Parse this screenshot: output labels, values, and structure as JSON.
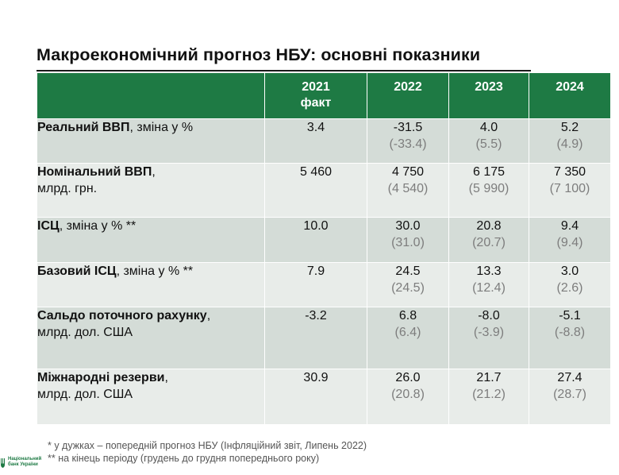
{
  "title": "Макроекономічний прогноз НБУ: основні показники",
  "header": {
    "corner": "",
    "years": [
      {
        "line1": "2021",
        "line2": "факт"
      },
      {
        "line1": "2022",
        "line2": ""
      },
      {
        "line1": "2023",
        "line2": ""
      },
      {
        "line1": "2024",
        "line2": ""
      }
    ]
  },
  "rows": [
    {
      "bold": "Реальний ВВП",
      "rest": ", зміна у %",
      "line2": "",
      "fact": "3.4",
      "values": [
        {
          "cur": "-31.5",
          "prev": "(-33.4)"
        },
        {
          "cur": "4.0",
          "prev": "(5.5)"
        },
        {
          "cur": "5.2",
          "prev": "(4.9)"
        }
      ]
    },
    {
      "bold": "Номінальний ВВП",
      "rest": ",",
      "line2": "млрд. грн.",
      "fact": "5 460",
      "values": [
        {
          "cur": "4 750",
          "prev": "(4 540)"
        },
        {
          "cur": "6 175",
          "prev": "(5 990)"
        },
        {
          "cur": "7 350",
          "prev": "(7 100)"
        }
      ]
    },
    {
      "bold": "ІСЦ",
      "rest": ", зміна у % **",
      "line2": "",
      "fact": "10.0",
      "values": [
        {
          "cur": "30.0",
          "prev": "(31.0)"
        },
        {
          "cur": "20.8",
          "prev": "(20.7)"
        },
        {
          "cur": "9.4",
          "prev": "(9.4)"
        }
      ]
    },
    {
      "bold": "Базовий ІСЦ",
      "rest": ", зміна у % **",
      "line2": "",
      "fact": "7.9",
      "values": [
        {
          "cur": "24.5",
          "prev": "(24.5)"
        },
        {
          "cur": "13.3",
          "prev": "(12.4)"
        },
        {
          "cur": "3.0",
          "prev": "(2.6)"
        }
      ]
    },
    {
      "bold": "Сальдо поточного рахунку",
      "rest": ",",
      "line2": "млрд. дол. США",
      "fact": "-3.2",
      "values": [
        {
          "cur": "6.8",
          "prev": "(6.4)"
        },
        {
          "cur": "-8.0",
          "prev": "(-3.9)"
        },
        {
          "cur": "-5.1",
          "prev": "(-8.8)"
        }
      ]
    },
    {
      "bold": "Міжнародні резерви",
      "rest": ",",
      "line2": "млрд. дол. США",
      "fact": "30.9",
      "values": [
        {
          "cur": "26.0",
          "prev": "(20.8)"
        },
        {
          "cur": "21.7",
          "prev": "(21.2)"
        },
        {
          "cur": "27.4",
          "prev": "(28.7)"
        }
      ]
    }
  ],
  "notes": [
    "* у дужках – попередній прогноз НБУ (Інфляційний звіт, Липень 2022)",
    "** на кінець періоду (грудень до грудня попереднього року)"
  ],
  "logo": {
    "line1": "Національний",
    "line2": "банк України"
  },
  "colors": {
    "header_green": "#1e7a44",
    "row_dark": "#d4dcd7",
    "row_light": "#e8ece9",
    "prev_gray": "#7d7d7d"
  }
}
